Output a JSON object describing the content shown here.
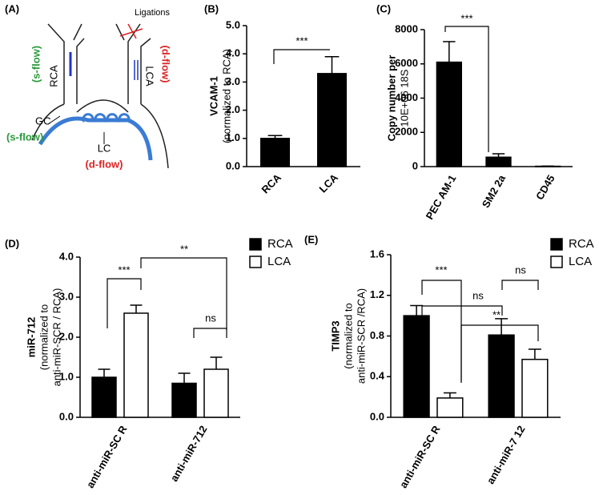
{
  "diagram": {
    "panel_label": "(A)",
    "ligations": "Ligations",
    "rca": "RCA",
    "lca": "LCA",
    "s_flow_upper": "(s-flow)",
    "d_flow_upper": "(d-flow)",
    "gc": "GC",
    "s_flow_lower": "(s-flow)",
    "lc": "LC",
    "d_flow_lower": "(d-flow)"
  },
  "chart_data": [
    {
      "type": "bar",
      "panel_label": "(B)",
      "y_label": [
        "VCAM-1",
        "(normalized to RCA)"
      ],
      "categories": [
        "RCA",
        "LCA"
      ],
      "series": [
        {
          "color": "#000000",
          "values": [
            1.0,
            3.3
          ],
          "errors": [
            0.1,
            0.6
          ]
        }
      ],
      "ylim": [
        0,
        5
      ],
      "yticks": [
        {
          "value": 0,
          "label": "0.0"
        },
        {
          "value": 1,
          "label": "1.0"
        },
        {
          "value": 2,
          "label": "2.0"
        },
        {
          "value": 3,
          "label": "3.0"
        },
        {
          "value": 4,
          "label": "4.0"
        },
        {
          "value": 5,
          "label": "5.0"
        }
      ],
      "annotations": [
        "***"
      ]
    },
    {
      "type": "bar",
      "panel_label": "(C)",
      "y_label": [
        "Copy number per",
        "10E+06 18S"
      ],
      "categories": [
        "PEC AM-1",
        "SM2 2a",
        "CD45"
      ],
      "series": [
        {
          "color": "#000000",
          "values": [
            6100,
            550,
            20
          ],
          "errors": [
            1200,
            200,
            10
          ]
        }
      ],
      "ylim": [
        0,
        8000
      ],
      "yticks": [
        0,
        2000,
        4000,
        6000,
        8000
      ],
      "annotations": [
        "***"
      ]
    },
    {
      "type": "bar",
      "panel_label": "(D)",
      "y_label": [
        "miR-712",
        "(normalized to",
        "anti-miR-SCR / RCA)"
      ],
      "categories": [
        "anti-miR-SC R",
        "anti-miR-712"
      ],
      "series": [
        {
          "name": "RCA",
          "color": "#000000",
          "values": [
            1.0,
            0.85
          ],
          "errors": [
            0.2,
            0.25
          ]
        },
        {
          "name": "LCA",
          "color": "#ffffff",
          "values": [
            2.6,
            1.2
          ],
          "errors": [
            0.2,
            0.3
          ]
        }
      ],
      "ylim": [
        0,
        4
      ],
      "yticks": [
        {
          "value": 0,
          "label": "0.0"
        },
        {
          "value": 1,
          "label": "1.0"
        },
        {
          "value": 2,
          "label": "2.0"
        },
        {
          "value": 3,
          "label": "3.0"
        },
        {
          "value": 4,
          "label": "4.0"
        }
      ],
      "legend": "upper right",
      "annotations": [
        "***",
        "**",
        "ns"
      ]
    },
    {
      "type": "bar",
      "panel_label": "(E)",
      "y_label": [
        "TIMP3",
        "(normalized to",
        "anti-miR-SCR /RCA)"
      ],
      "categories": [
        "anti-miR-SC R",
        "anti-miR-7 12"
      ],
      "series": [
        {
          "name": "RCA",
          "color": "#000000",
          "values": [
            1.0,
            0.81
          ],
          "errors": [
            0.1,
            0.16
          ]
        },
        {
          "name": "LCA",
          "color": "#ffffff",
          "values": [
            0.19,
            0.57
          ],
          "errors": [
            0.05,
            0.1
          ]
        }
      ],
      "ylim": [
        0,
        1.6
      ],
      "yticks": [
        {
          "value": 0,
          "label": "0.0"
        },
        {
          "value": 0.4,
          "label": "0.4"
        },
        {
          "value": 0.8,
          "label": "0.8"
        },
        {
          "value": 1.2,
          "label": "1.2"
        },
        {
          "value": 1.6,
          "label": "1.6"
        }
      ],
      "legend": "upper right",
      "annotations": [
        "***",
        "ns",
        "ns",
        "**"
      ]
    }
  ]
}
